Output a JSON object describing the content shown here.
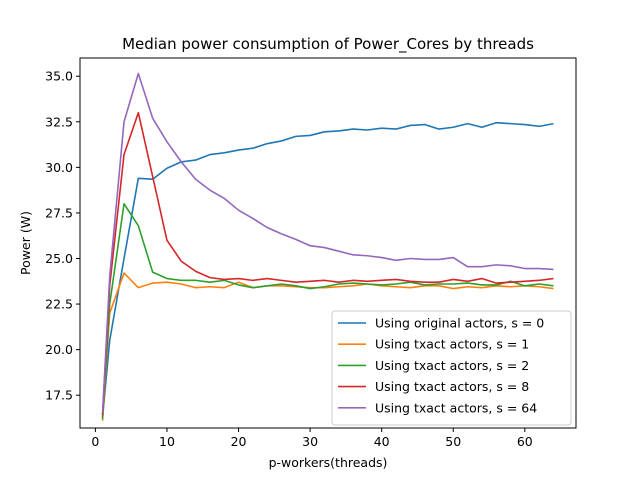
{
  "chart_data": {
    "type": "line",
    "title": "Median power consumption of Power_Cores by threads",
    "xlabel": "p-workers(threads)",
    "ylabel": "Power (W)",
    "xlim": [
      -2.15,
      67.15
    ],
    "ylim": [
      15.7,
      36.0
    ],
    "xticks": [
      0,
      10,
      20,
      30,
      40,
      50,
      60
    ],
    "yticks": [
      17.5,
      20.0,
      22.5,
      25.0,
      27.5,
      30.0,
      32.5,
      35.0
    ],
    "ytick_labels": [
      "17.5",
      "20.0",
      "22.5",
      "25.0",
      "27.5",
      "30.0",
      "32.5",
      "35.0"
    ],
    "grid": false,
    "legend_position": "lower right",
    "x": [
      1,
      2,
      4,
      6,
      8,
      10,
      12,
      14,
      16,
      18,
      20,
      22,
      24,
      26,
      28,
      30,
      32,
      34,
      36,
      38,
      40,
      42,
      44,
      46,
      48,
      50,
      52,
      54,
      56,
      58,
      60,
      62,
      64
    ],
    "series": [
      {
        "name": "Using original actors, s = 0",
        "color": "#1f77b4",
        "values": [
          16.3,
          20.5,
          25.0,
          29.4,
          29.35,
          29.95,
          30.3,
          30.4,
          30.7,
          30.8,
          30.95,
          31.05,
          31.3,
          31.45,
          31.7,
          31.75,
          31.95,
          32.0,
          32.1,
          32.05,
          32.15,
          32.1,
          32.3,
          32.35,
          32.1,
          32.2,
          32.4,
          32.2,
          32.45,
          32.4,
          32.35,
          32.25,
          32.4
        ]
      },
      {
        "name": "Using txact actors, s = 1",
        "color": "#ff7f0e",
        "values": [
          16.1,
          22.0,
          24.2,
          23.4,
          23.65,
          23.7,
          23.6,
          23.4,
          23.45,
          23.4,
          23.7,
          23.4,
          23.5,
          23.5,
          23.45,
          23.4,
          23.4,
          23.45,
          23.5,
          23.6,
          23.5,
          23.45,
          23.4,
          23.5,
          23.5,
          23.35,
          23.45,
          23.4,
          23.5,
          23.45,
          23.5,
          23.45,
          23.35
        ]
      },
      {
        "name": "Using txact actors, s = 2",
        "color": "#2ca02c",
        "values": [
          16.2,
          22.5,
          28.0,
          26.8,
          24.25,
          23.9,
          23.8,
          23.8,
          23.7,
          23.8,
          23.55,
          23.4,
          23.5,
          23.6,
          23.5,
          23.35,
          23.45,
          23.6,
          23.65,
          23.6,
          23.55,
          23.6,
          23.7,
          23.55,
          23.6,
          23.6,
          23.65,
          23.55,
          23.55,
          23.75,
          23.5,
          23.6,
          23.5
        ]
      },
      {
        "name": "Using txact actors, s = 8",
        "color": "#d62728",
        "values": [
          16.4,
          23.5,
          30.7,
          33.0,
          29.5,
          26.0,
          24.85,
          24.3,
          23.95,
          23.85,
          23.9,
          23.8,
          23.9,
          23.8,
          23.7,
          23.75,
          23.8,
          23.7,
          23.8,
          23.75,
          23.8,
          23.85,
          23.75,
          23.7,
          23.7,
          23.85,
          23.75,
          23.9,
          23.65,
          23.7,
          23.75,
          23.8,
          23.9
        ]
      },
      {
        "name": "Using txact actors, s = 64",
        "color": "#9467bd",
        "values": [
          16.5,
          24.0,
          32.5,
          35.15,
          32.7,
          31.4,
          30.3,
          29.35,
          28.75,
          28.3,
          27.65,
          27.2,
          26.7,
          26.35,
          26.05,
          25.7,
          25.6,
          25.4,
          25.2,
          25.15,
          25.05,
          24.9,
          25.0,
          24.95,
          24.95,
          25.05,
          24.55,
          24.55,
          24.65,
          24.6,
          24.45,
          24.45,
          24.4
        ]
      }
    ]
  }
}
